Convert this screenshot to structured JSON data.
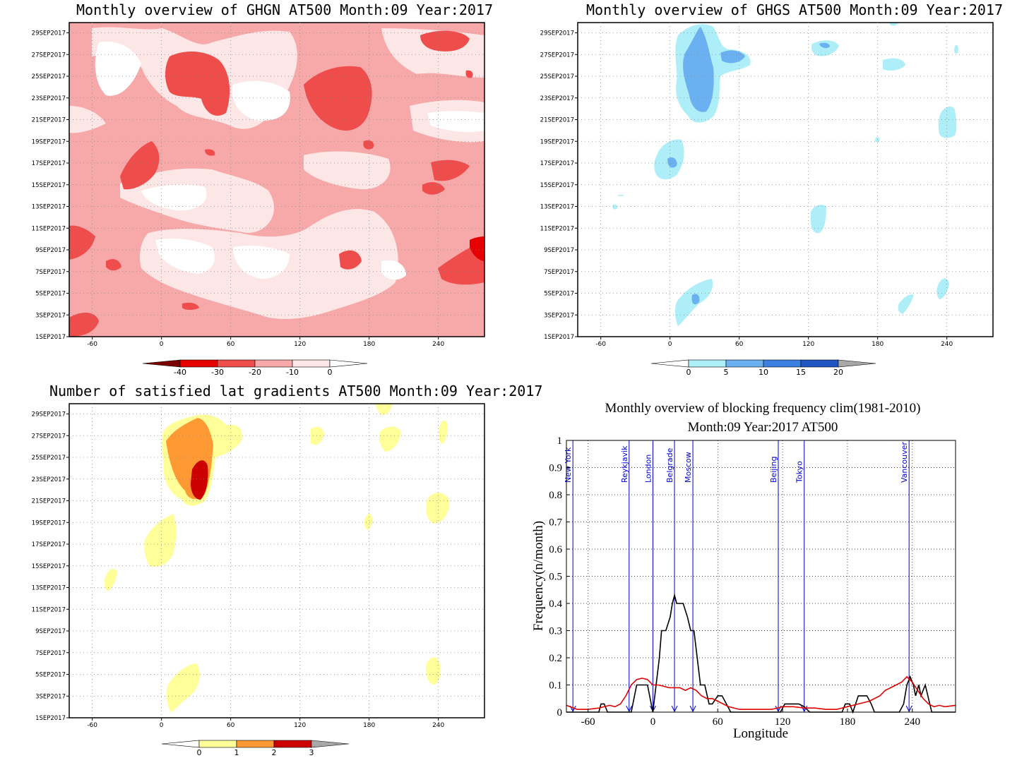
{
  "panels": {
    "ghgn": {
      "title": "Monthly overview of GHGN AT500 Month:09 Year:2017",
      "legend_labels": [
        "-40",
        "-30",
        "-20",
        "-10",
        "0"
      ],
      "legend_colors": [
        "#7a0000",
        "#e60000",
        "#ef4c4c",
        "#f7a8a8",
        "#fde6e6",
        "#ffffff"
      ]
    },
    "ghgs": {
      "title": "Monthly overview of GHGS AT500 Month:09 Year:2017",
      "legend_labels": [
        "0",
        "5",
        "10",
        "15",
        "20"
      ],
      "legend_colors": [
        "#ffffff",
        "#aeeef8",
        "#6bb0f0",
        "#3b7fe0",
        "#1f56c4",
        "#a8a8a8"
      ]
    },
    "gradients": {
      "title": "Number of satisfied lat gradients AT500 Month:09 Year:2017",
      "legend_labels": [
        "0",
        "1",
        "2",
        "3"
      ],
      "legend_colors": [
        "#ffffff",
        "#ffff99",
        "#ff9933",
        "#cc0000",
        "#a8a8a8"
      ]
    },
    "blocking": {
      "title_line1": "Monthly overview of blocking frequency clim(1981-2010)",
      "title_line2": "Month:09 Year:2017  AT500"
    }
  },
  "hovmoller_axes": {
    "x_ticks": [
      "-60",
      "0",
      "60",
      "120",
      "180",
      "240"
    ],
    "y_ticks": [
      "1SEP2017",
      "3SEP2017",
      "5SEP2017",
      "7SEP2017",
      "9SEP2017",
      "11SEP2017",
      "13SEP2017",
      "15SEP2017",
      "17SEP2017",
      "19SEP2017",
      "21SEP2017",
      "23SEP2017",
      "25SEP2017",
      "27SEP2017",
      "29SEP2017"
    ]
  },
  "chart_data": {
    "type": "line",
    "xlabel": "Longitude",
    "ylabel": "Frequency(n/month)",
    "xlim": [
      -80,
      280
    ],
    "ylim": [
      0,
      1
    ],
    "x_ticks": [
      "-60",
      "0",
      "60",
      "120",
      "180",
      "240"
    ],
    "y_ticks": [
      "0",
      "0.1",
      "0.2",
      "0.3",
      "0.4",
      "0.5",
      "0.6",
      "0.7",
      "0.8",
      "0.9",
      "1"
    ],
    "grid": true,
    "cities": [
      {
        "name": "New York",
        "lon": -74
      },
      {
        "name": "Reykjavik",
        "lon": -22
      },
      {
        "name": "London",
        "lon": 0
      },
      {
        "name": "Belgrade",
        "lon": 20
      },
      {
        "name": "Moscow",
        "lon": 37
      },
      {
        "name": "Beijing",
        "lon": 116
      },
      {
        "name": "Tokyo",
        "lon": 140
      },
      {
        "name": "Vancouver",
        "lon": 237
      }
    ],
    "series": [
      {
        "color": "#000000",
        "x": [
          -80,
          -50,
          -48,
          -45,
          -42,
          -30,
          -20,
          -15,
          -5,
          0,
          3,
          6,
          8,
          12,
          16,
          18,
          20,
          22,
          25,
          28,
          32,
          35,
          38,
          41,
          44,
          48,
          52,
          55,
          60,
          64,
          68,
          72,
          80,
          95,
          110,
          118,
          122,
          125,
          130,
          135,
          140,
          145,
          160,
          175,
          178,
          182,
          185,
          190,
          198,
          202,
          205,
          212,
          218,
          228,
          232,
          235,
          238,
          241,
          243,
          246,
          248,
          252,
          258,
          280
        ],
        "y": [
          0,
          0,
          0.03,
          0.03,
          0,
          0,
          0,
          0.1,
          0.1,
          0,
          0.1,
          0.2,
          0.3,
          0.3,
          0.35,
          0.4,
          0.43,
          0.4,
          0.4,
          0.4,
          0.35,
          0.3,
          0.3,
          0.2,
          0.1,
          0.1,
          0.03,
          0.03,
          0.06,
          0.06,
          0.03,
          0,
          0,
          0,
          0,
          0,
          0.03,
          0.03,
          0.03,
          0.03,
          0.02,
          0,
          0,
          0,
          0.03,
          0.03,
          0,
          0.06,
          0.06,
          0.03,
          0,
          0,
          0,
          0,
          0.03,
          0.1,
          0.13,
          0.1,
          0.06,
          0.1,
          0.06,
          0.1,
          0,
          0
        ]
      },
      {
        "color": "#e00000",
        "x": [
          -80,
          -70,
          -60,
          -50,
          -40,
          -35,
          -30,
          -25,
          -20,
          -15,
          -10,
          -5,
          0,
          5,
          10,
          15,
          20,
          25,
          30,
          35,
          40,
          45,
          50,
          55,
          60,
          65,
          70,
          80,
          90,
          100,
          110,
          120,
          130,
          140,
          150,
          160,
          170,
          180,
          190,
          200,
          210,
          215,
          220,
          225,
          230,
          235,
          240,
          245,
          250,
          255,
          260,
          265,
          270,
          280
        ],
        "y": [
          0.025,
          0.01,
          0.01,
          0.015,
          0.025,
          0.02,
          0.03,
          0.06,
          0.1,
          0.12,
          0.125,
          0.12,
          0.1,
          0.1,
          0.095,
          0.09,
          0.09,
          0.09,
          0.08,
          0.09,
          0.08,
          0.06,
          0.05,
          0.05,
          0.04,
          0.03,
          0.02,
          0.01,
          0.01,
          0.01,
          0.01,
          0.02,
          0.02,
          0.015,
          0.015,
          0.01,
          0.01,
          0.02,
          0.03,
          0.04,
          0.06,
          0.08,
          0.09,
          0.1,
          0.11,
          0.13,
          0.11,
          0.08,
          0.05,
          0.03,
          0.02,
          0.025,
          0.02,
          0.025
        ]
      }
    ]
  }
}
